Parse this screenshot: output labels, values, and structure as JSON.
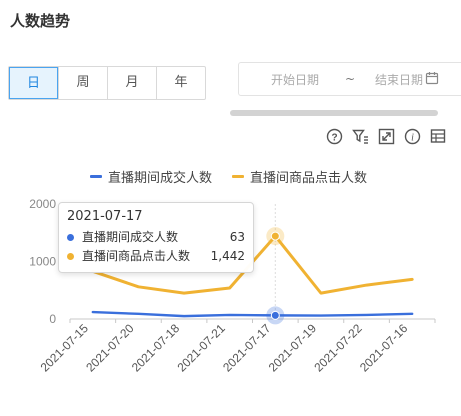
{
  "title": "人数趋势",
  "period_tabs": [
    {
      "label": "日",
      "active": true
    },
    {
      "label": "周",
      "active": false
    },
    {
      "label": "月",
      "active": false
    },
    {
      "label": "年",
      "active": false
    }
  ],
  "date_range": {
    "start_placeholder": "开始日期",
    "separator": "~",
    "end_placeholder": "结束日期"
  },
  "toolbox_icons": [
    "help-icon",
    "filter-icon",
    "zoom-icon",
    "info-icon",
    "data-view-icon"
  ],
  "colors": {
    "accent": "#4aa4f0",
    "series_blue": "#3a6fdc",
    "series_orange": "#f0b232"
  },
  "tooltip": {
    "title": "2021-07-17",
    "rows": [
      {
        "name": "直播期间成交人数",
        "value": "63"
      },
      {
        "name": "直播间商品点击人数",
        "value": "1,442"
      }
    ]
  },
  "chart_data": {
    "type": "line",
    "categories": [
      "2021-07-15",
      "2021-07-20",
      "2021-07-18",
      "2021-07-21",
      "2021-07-17",
      "2021-07-19",
      "2021-07-22",
      "2021-07-16"
    ],
    "series": [
      {
        "name": "直播期间成交人数",
        "color": "#3a6fdc",
        "values": [
          120,
          90,
          50,
          70,
          63,
          60,
          70,
          90
        ]
      },
      {
        "name": "直播间商品点击人数",
        "color": "#f0b232",
        "values": [
          830,
          560,
          450,
          540,
          1442,
          450,
          590,
          690
        ]
      }
    ],
    "ylim": [
      0,
      2000
    ],
    "yticks": [
      0,
      1000,
      2000
    ],
    "highlight_index": 4,
    "legend_position": "top",
    "grid": false
  }
}
